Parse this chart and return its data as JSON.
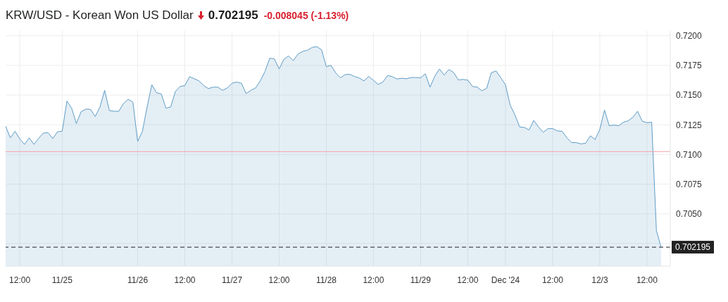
{
  "chart_data": {
    "type": "area",
    "title": "KRW/USD - Korean Won US Dollar",
    "annotations": [
      "0.702195",
      "-0.008045 (-1.13%)"
    ],
    "categories": [
      null,
      null,
      null,
      "12:00",
      null,
      null,
      null,
      null,
      null,
      null,
      null,
      null,
      "11/25",
      null,
      null,
      null,
      null,
      null,
      null,
      null,
      null,
      null,
      null,
      null,
      null,
      null,
      null,
      null,
      "11/26",
      null,
      null,
      null,
      null,
      null,
      null,
      null,
      null,
      null,
      "12:00",
      null,
      null,
      null,
      null,
      null,
      null,
      null,
      null,
      null,
      "11/27",
      null,
      null,
      null,
      null,
      null,
      null,
      null,
      null,
      null,
      "12:00",
      null,
      null,
      null,
      null,
      null,
      null,
      null,
      null,
      null,
      "11/28",
      null,
      null,
      null,
      null,
      null,
      null,
      null,
      null,
      null,
      "12:00",
      null,
      null,
      null,
      null,
      null,
      null,
      null,
      null,
      null,
      "11/29",
      null,
      null,
      null,
      null,
      null,
      null,
      null,
      null,
      null,
      "12:00",
      null,
      null,
      null,
      null,
      null,
      null,
      null,
      "Dec '24",
      null,
      null,
      null,
      null,
      null,
      null,
      null,
      null,
      null,
      "12:00",
      null,
      null,
      null,
      null,
      null,
      null,
      null,
      null,
      null,
      "12/3",
      null,
      null,
      null,
      null,
      null,
      null,
      null,
      null,
      null,
      "12:00",
      null,
      null,
      null
    ],
    "series": [
      {
        "color": "#5e9cc5",
        "values": [
          0.71238,
          0.7114,
          0.71195,
          0.71132,
          0.71085,
          0.7114,
          0.71085,
          0.71136,
          0.7118,
          0.71183,
          0.71134,
          0.71191,
          0.71196,
          0.7145,
          0.7139,
          0.7126,
          0.7136,
          0.71382,
          0.7138,
          0.7132,
          0.714,
          0.7154,
          0.7137,
          0.71364,
          0.71364,
          0.7143,
          0.71465,
          0.7144,
          0.7111,
          0.71195,
          0.714,
          0.71587,
          0.7152,
          0.7151,
          0.7139,
          0.714,
          0.7153,
          0.71573,
          0.7158,
          0.71655,
          0.71638,
          0.7162,
          0.7158,
          0.71555,
          0.71567,
          0.71567,
          0.7154,
          0.7156,
          0.716,
          0.7161,
          0.716,
          0.71513,
          0.7154,
          0.7156,
          0.7162,
          0.71699,
          0.71811,
          0.71805,
          0.7172,
          0.71801,
          0.7183,
          0.7179,
          0.71846,
          0.71868,
          0.71878,
          0.71902,
          0.71908,
          0.71882,
          0.7174,
          0.7175,
          0.71687,
          0.71646,
          0.71673,
          0.71675,
          0.71657,
          0.71644,
          0.7162,
          0.71657,
          0.71624,
          0.7159,
          0.7161,
          0.71665,
          0.71655,
          0.71636,
          0.71642,
          0.71638,
          0.71648,
          0.71648,
          0.71646,
          0.71679,
          0.71567,
          0.71659,
          0.7172,
          0.71669,
          0.71716,
          0.7169,
          0.71628,
          0.71632,
          0.71626,
          0.71573,
          0.71567,
          0.71537,
          0.71557,
          0.71689,
          0.71703,
          0.71646,
          0.71587,
          0.71415,
          0.71333,
          0.71232,
          0.71228,
          0.71207,
          0.71287,
          0.71232,
          0.71187,
          0.71218,
          0.71218,
          0.71199,
          0.71195,
          0.71142,
          0.711,
          0.711,
          0.71089,
          0.71095,
          0.71157,
          0.71126,
          0.71211,
          0.71374,
          0.71242,
          0.71248,
          0.71242,
          0.71272,
          0.71283,
          0.71313,
          0.71364,
          0.7128,
          0.71268,
          0.71272,
          0.7036,
          0.702195
        ]
      }
    ],
    "ylim": [
      0.7006,
      0.7204
    ],
    "yticks": [
      {
        "value": 0.7025,
        "label": null
      },
      {
        "value": 0.705,
        "label": "0.7050"
      },
      {
        "value": 0.7075,
        "label": "0.7075"
      },
      {
        "value": 0.71,
        "label": "0.7100"
      },
      {
        "value": 0.7125,
        "label": "0.7125"
      },
      {
        "value": 0.715,
        "label": "0.7150"
      },
      {
        "value": 0.7175,
        "label": "0.7175"
      },
      {
        "value": 0.72,
        "label": "0.7200"
      }
    ],
    "grid": true,
    "ref_lines": [
      {
        "axis": "y",
        "value": 0.71024,
        "color": "#f4a3a8",
        "line_style": "solid"
      },
      {
        "axis": "y",
        "value": 0.702195,
        "label": "0.702195",
        "color": "#222222",
        "line_style": "dashed"
      }
    ]
  }
}
